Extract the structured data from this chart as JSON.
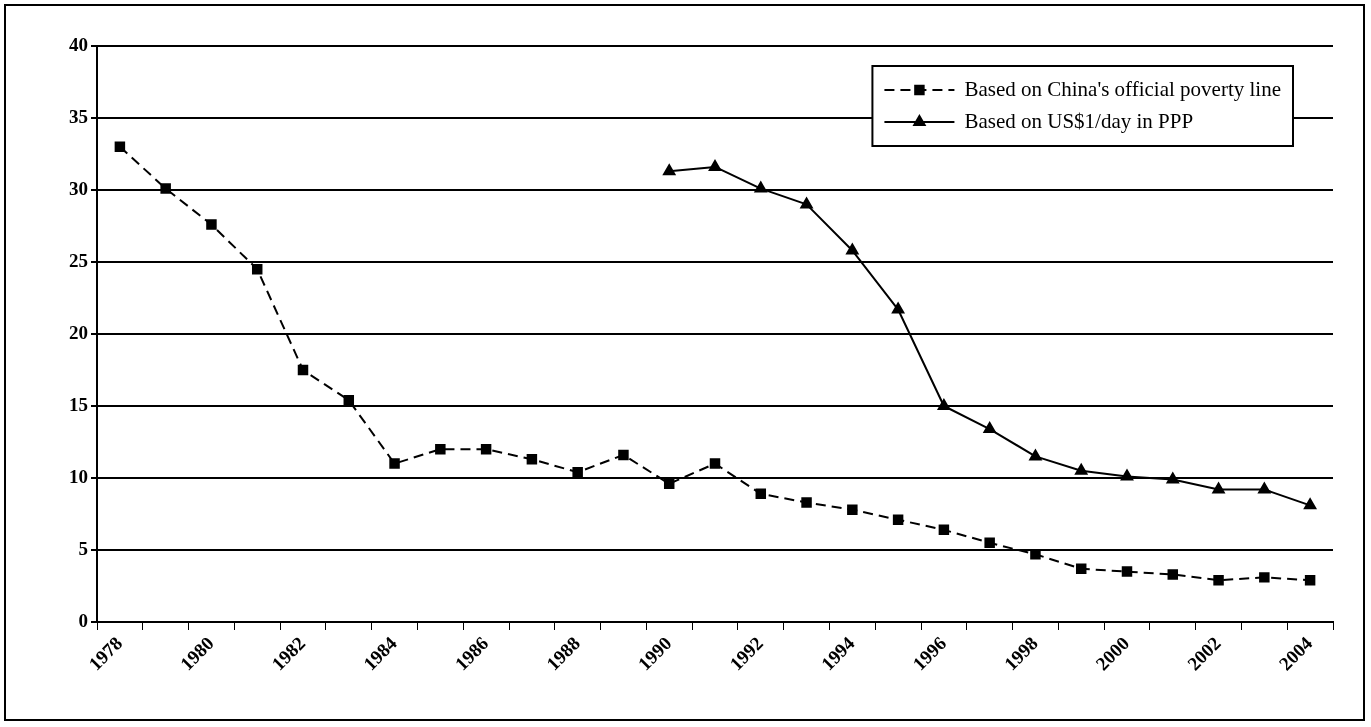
{
  "chart_data": {
    "type": "line",
    "categories": [
      "1978",
      null,
      "1980",
      null,
      "1982",
      null,
      "1984",
      null,
      "1986",
      null,
      "1988",
      null,
      "1990",
      null,
      "1992",
      null,
      "1994",
      null,
      "1996",
      null,
      "1998",
      null,
      "2000",
      null,
      "2002",
      null,
      "2004"
    ],
    "series": [
      {
        "name": "Based on China's official poverty line",
        "color": "#000000",
        "marker": "square",
        "line_style": "dashed",
        "values": [
          33.0,
          30.1,
          27.6,
          24.5,
          17.5,
          15.4,
          11.0,
          12.0,
          12.0,
          11.3,
          10.4,
          11.6,
          9.6,
          11.0,
          8.9,
          8.3,
          7.8,
          7.1,
          6.4,
          5.5,
          4.7,
          3.7,
          3.5,
          3.3,
          2.9,
          3.1,
          2.9
        ]
      },
      {
        "name": "Based on US$1/day in PPP",
        "color": "#000000",
        "marker": "triangle",
        "line_style": "solid",
        "values": [
          null,
          null,
          null,
          null,
          null,
          null,
          null,
          null,
          null,
          null,
          null,
          null,
          31.3,
          31.6,
          30.1,
          29.0,
          25.8,
          21.7,
          15.0,
          13.4,
          11.5,
          10.5,
          10.1,
          9.9,
          9.2,
          9.2,
          8.1
        ]
      }
    ],
    "ylim": [
      0,
      40
    ],
    "yticks": [
      0,
      5,
      10,
      15,
      20,
      25,
      30,
      35,
      40
    ],
    "grid": "y",
    "legend": "top right"
  }
}
